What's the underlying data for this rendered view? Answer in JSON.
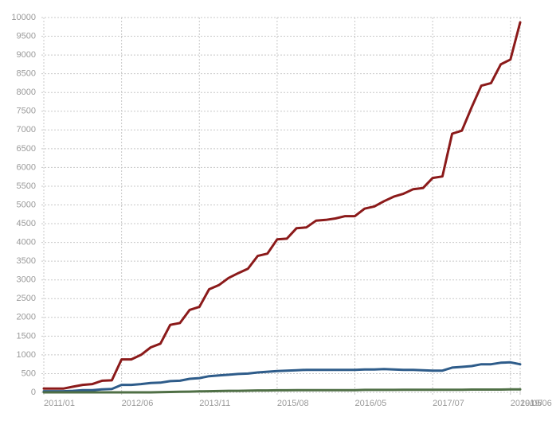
{
  "chart_data": {
    "type": "line",
    "categories": [
      "2011/01",
      null,
      null,
      null,
      null,
      null,
      null,
      null,
      "2012/06",
      null,
      null,
      null,
      null,
      null,
      null,
      null,
      "2013/11",
      null,
      null,
      null,
      null,
      null,
      null,
      null,
      "2015/08",
      null,
      null,
      null,
      null,
      null,
      null,
      null,
      "2016/05",
      null,
      null,
      null,
      null,
      null,
      null,
      null,
      "2017/07",
      null,
      null,
      null,
      null,
      null,
      null,
      null,
      "2019/05",
      "2019/06"
    ],
    "series": [
      {
        "color": "#8b1a1a",
        "values": [
          100,
          100,
          100,
          150,
          200,
          220,
          310,
          320,
          880,
          880,
          1000,
          1200,
          1300,
          1800,
          1850,
          2200,
          2280,
          2750,
          2860,
          3050,
          3180,
          3300,
          3640,
          3700,
          4080,
          4100,
          4380,
          4400,
          4580,
          4600,
          4640,
          4700,
          4700,
          4900,
          4960,
          5100,
          5220,
          5300,
          5420,
          5450,
          5720,
          5760,
          6900,
          6980,
          7600,
          8180,
          8250,
          8750,
          8880,
          9870
        ]
      },
      {
        "color": "#2e5c8a",
        "values": [
          30,
          30,
          30,
          40,
          60,
          60,
          80,
          90,
          200,
          200,
          220,
          250,
          260,
          300,
          310,
          360,
          380,
          430,
          450,
          470,
          490,
          500,
          530,
          550,
          570,
          580,
          590,
          600,
          600,
          600,
          600,
          600,
          600,
          610,
          610,
          620,
          610,
          600,
          600,
          590,
          580,
          580,
          660,
          680,
          700,
          750,
          750,
          790,
          800,
          750
        ]
      },
      {
        "color": "#4f6f45",
        "values": [
          0,
          0,
          0,
          0,
          0,
          0,
          0,
          0,
          0,
          0,
          0,
          0,
          5,
          10,
          15,
          20,
          25,
          30,
          35,
          40,
          40,
          45,
          50,
          50,
          55,
          55,
          60,
          60,
          60,
          60,
          60,
          60,
          60,
          65,
          65,
          65,
          65,
          70,
          70,
          70,
          70,
          70,
          70,
          70,
          75,
          75,
          75,
          75,
          80,
          80
        ]
      }
    ],
    "ylim": [
      0,
      10000
    ],
    "yticks": [
      0,
      500,
      1000,
      1500,
      2000,
      2500,
      3000,
      3500,
      4000,
      4500,
      5000,
      5500,
      6000,
      6500,
      7000,
      7500,
      8000,
      8500,
      9000,
      9500,
      10000
    ],
    "grid": true
  }
}
